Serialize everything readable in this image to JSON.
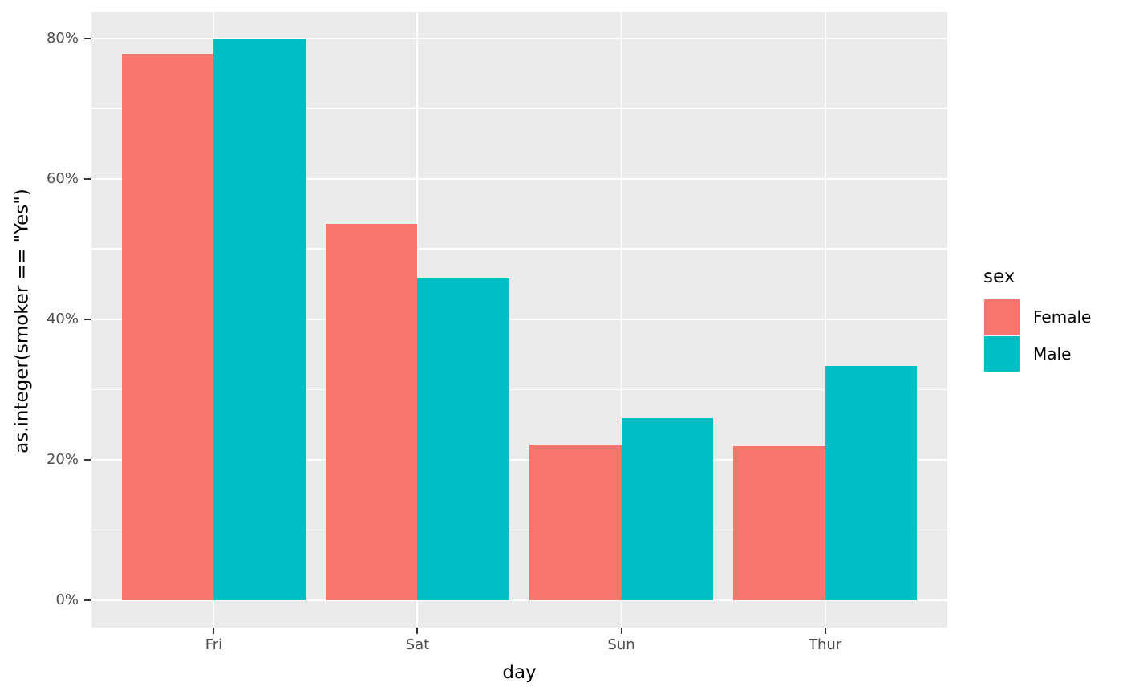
{
  "chart_data": {
    "type": "bar",
    "title": "",
    "categories": [
      "Fri",
      "Sat",
      "Sun",
      "Thur"
    ],
    "series": [
      {
        "name": "Female",
        "color": "#F8766D",
        "values": [
          77.8,
          53.6,
          22.2,
          21.9
        ]
      },
      {
        "name": "Male",
        "color": "#00BFC4",
        "values": [
          80.0,
          45.8,
          25.9,
          33.3
        ]
      }
    ],
    "xlabel": "day",
    "ylabel": "as.integer(smoker == \"Yes\")",
    "ylim": [
      0,
      80
    ],
    "ytick_major_values": [
      0,
      20,
      40,
      60,
      80
    ],
    "ytick_minor_values": [
      10,
      30,
      50,
      70
    ],
    "ytick_labels": [
      "0%",
      "20%",
      "40%",
      "60%",
      "80%"
    ],
    "grid": "major-and-minor, white on gray panel",
    "legend": {
      "title": "sex",
      "position": "right",
      "entries": [
        "Female",
        "Male"
      ]
    }
  },
  "colors": {
    "panel_background": "#EBEBEB",
    "gridline": "#FFFFFF",
    "tick_label": "#4D4D4D",
    "tick_mark": "#333333",
    "axis_title": "#000000",
    "legend_key_background": "#F2F2F2",
    "canvas_background": "#FFFFFF",
    "female_fill": "#F8766D",
    "male_fill": "#00BFC4"
  }
}
